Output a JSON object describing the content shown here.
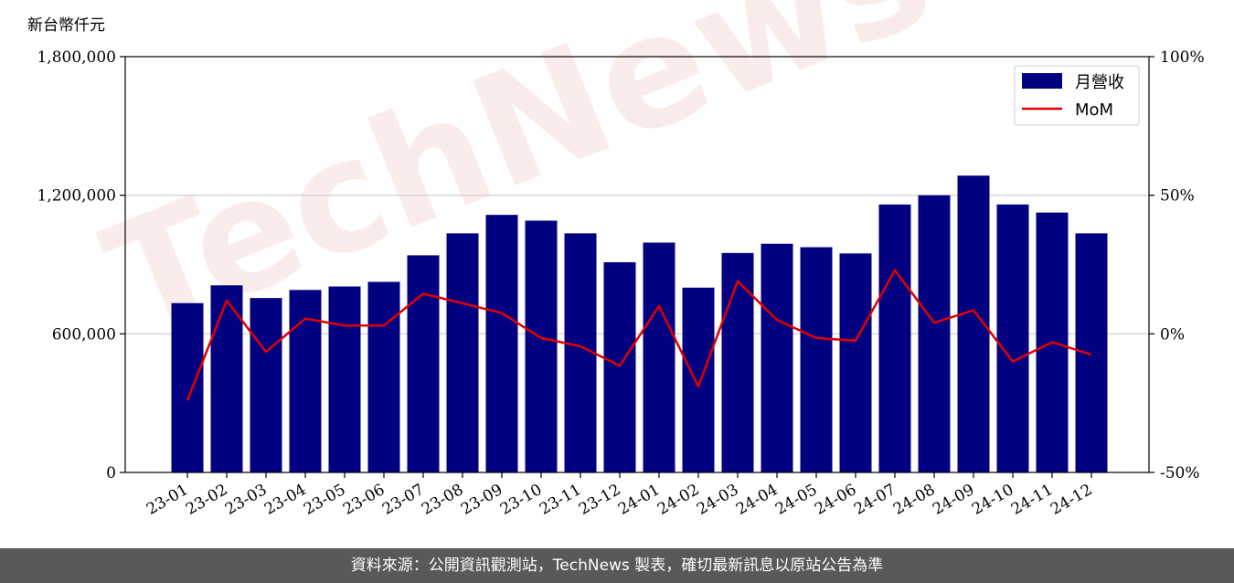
{
  "chart_data": {
    "type": "bar",
    "unit_label": "新台幣仟元",
    "watermark": "TechNews",
    "categories": [
      "23-01",
      "23-02",
      "23-03",
      "23-04",
      "23-05",
      "23-06",
      "23-07",
      "23-08",
      "23-09",
      "23-10",
      "23-11",
      "23-12",
      "24-01",
      "24-02",
      "24-03",
      "24-04",
      "24-05",
      "24-06",
      "24-07",
      "24-08",
      "24-09",
      "24-10",
      "24-11",
      "24-12"
    ],
    "series": [
      {
        "name": "月營收",
        "type": "bar",
        "axis": "left",
        "color": "#000080",
        "values": [
          733000,
          810000,
          755000,
          790000,
          805000,
          825000,
          940000,
          1035000,
          1115000,
          1090000,
          1035000,
          910000,
          995000,
          800000,
          950000,
          990000,
          975000,
          948000,
          1160000,
          1200000,
          1285000,
          1160000,
          1125000,
          1035000
        ]
      },
      {
        "name": "MoM",
        "type": "line",
        "axis": "right",
        "color": "#e00000",
        "values": [
          -24,
          12,
          -6.5,
          5.5,
          3,
          3,
          14.5,
          11,
          7.5,
          -1.5,
          -4.5,
          -11.5,
          10,
          -19,
          19,
          5,
          -1.5,
          -2.5,
          23,
          4,
          8.5,
          -10,
          -3,
          -7.5
        ]
      }
    ],
    "y_left": {
      "min": 0,
      "max": 1800000,
      "ticks": [
        "0",
        "600,000",
        "1,200,000",
        "1,800,000"
      ],
      "tick_values": [
        0,
        600000,
        1200000,
        1800000
      ]
    },
    "y_right": {
      "min": -50,
      "max": 100,
      "ticks": [
        "-50%",
        "0%",
        "50%",
        "100%"
      ],
      "tick_values": [
        -50,
        0,
        50,
        100
      ]
    },
    "grid": "horizontal",
    "legend_position": "top-right"
  },
  "footer": {
    "text": "資料來源：公開資訊觀測站，TechNews 製表，確切最新訊息以原站公告為準"
  }
}
